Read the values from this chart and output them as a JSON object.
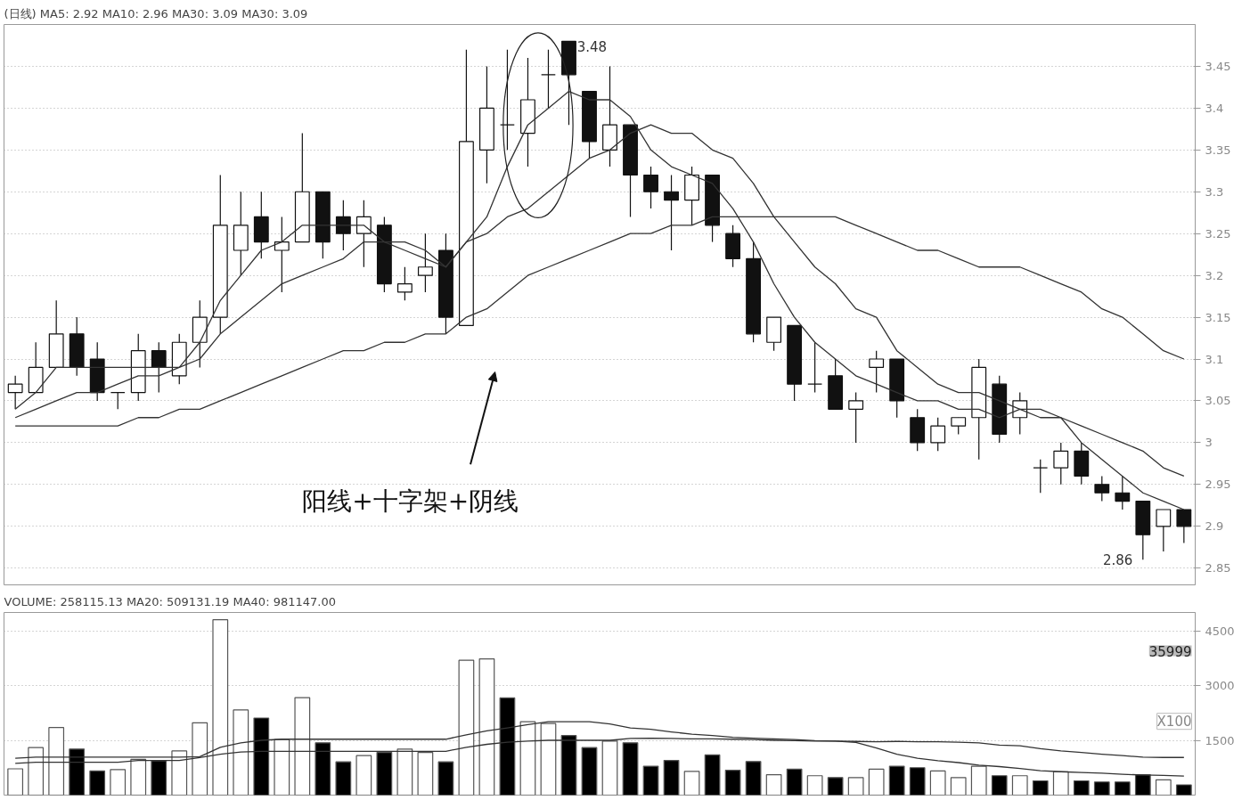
{
  "chart_data": [
    {
      "type": "candlestick",
      "title": "(日线) MA5: 2.92  MA10: 2.96  MA30: 3.09  MA30: 3.09",
      "categories": [
        null,
        null,
        null,
        null,
        null,
        null,
        null,
        null,
        null,
        null,
        null,
        null,
        null,
        null,
        null,
        null,
        null,
        null,
        null,
        null,
        null,
        null,
        null,
        null,
        null,
        null,
        null,
        null,
        null,
        null,
        null,
        null,
        null,
        null,
        null,
        null,
        null,
        null,
        null,
        null,
        null,
        null,
        null,
        null,
        null,
        null,
        null,
        null,
        null,
        null,
        null,
        null,
        null,
        null,
        null,
        null,
        null,
        null
      ],
      "ohlc": [
        [
          3.06,
          3.08,
          3.04,
          3.07
        ],
        [
          3.06,
          3.12,
          3.06,
          3.09
        ],
        [
          3.09,
          3.17,
          3.09,
          3.13
        ],
        [
          3.13,
          3.15,
          3.08,
          3.09
        ],
        [
          3.1,
          3.12,
          3.05,
          3.06
        ],
        [
          3.06,
          3.06,
          3.04,
          3.06
        ],
        [
          3.06,
          3.13,
          3.05,
          3.11
        ],
        [
          3.11,
          3.12,
          3.06,
          3.09
        ],
        [
          3.08,
          3.13,
          3.07,
          3.12
        ],
        [
          3.12,
          3.17,
          3.09,
          3.15
        ],
        [
          3.15,
          3.32,
          3.13,
          3.26
        ],
        [
          3.23,
          3.3,
          3.2,
          3.26
        ],
        [
          3.27,
          3.3,
          3.22,
          3.24
        ],
        [
          3.23,
          3.27,
          3.18,
          3.24
        ],
        [
          3.24,
          3.37,
          3.24,
          3.3
        ],
        [
          3.3,
          3.3,
          3.22,
          3.24
        ],
        [
          3.27,
          3.29,
          3.23,
          3.25
        ],
        [
          3.25,
          3.29,
          3.21,
          3.27
        ],
        [
          3.26,
          3.27,
          3.18,
          3.19
        ],
        [
          3.18,
          3.21,
          3.17,
          3.19
        ],
        [
          3.2,
          3.25,
          3.18,
          3.21
        ],
        [
          3.23,
          3.25,
          3.13,
          3.15
        ],
        [
          3.14,
          3.47,
          3.14,
          3.36
        ],
        [
          3.35,
          3.45,
          3.31,
          3.4
        ],
        [
          3.38,
          3.47,
          3.35,
          3.38
        ],
        [
          3.37,
          3.46,
          3.33,
          3.41
        ],
        [
          3.44,
          3.47,
          3.4,
          3.44
        ],
        [
          3.48,
          3.48,
          3.38,
          3.44
        ],
        [
          3.42,
          3.42,
          3.34,
          3.36
        ],
        [
          3.35,
          3.45,
          3.33,
          3.38
        ],
        [
          3.38,
          3.38,
          3.27,
          3.32
        ],
        [
          3.32,
          3.33,
          3.28,
          3.3
        ],
        [
          3.3,
          3.32,
          3.23,
          3.29
        ],
        [
          3.29,
          3.33,
          3.26,
          3.32
        ],
        [
          3.32,
          3.32,
          3.24,
          3.26
        ],
        [
          3.25,
          3.26,
          3.21,
          3.22
        ],
        [
          3.22,
          3.24,
          3.12,
          3.13
        ],
        [
          3.12,
          3.15,
          3.11,
          3.15
        ],
        [
          3.14,
          3.14,
          3.05,
          3.07
        ],
        [
          3.07,
          3.12,
          3.06,
          3.07
        ],
        [
          3.08,
          3.1,
          3.04,
          3.04
        ],
        [
          3.04,
          3.06,
          3.0,
          3.05
        ],
        [
          3.09,
          3.11,
          3.06,
          3.1
        ],
        [
          3.1,
          3.1,
          3.03,
          3.05
        ],
        [
          3.03,
          3.04,
          2.99,
          3.0
        ],
        [
          3.0,
          3.03,
          2.99,
          3.02
        ],
        [
          3.02,
          3.03,
          3.01,
          3.03
        ],
        [
          3.03,
          3.1,
          2.98,
          3.09
        ],
        [
          3.07,
          3.08,
          3.0,
          3.01
        ],
        [
          3.03,
          3.06,
          3.01,
          3.05
        ],
        [
          2.97,
          2.98,
          2.94,
          2.97
        ],
        [
          2.97,
          3.0,
          2.95,
          2.99
        ],
        [
          2.99,
          3.0,
          2.95,
          2.96
        ],
        [
          2.95,
          2.96,
          2.93,
          2.94
        ],
        [
          2.94,
          2.96,
          2.92,
          2.93
        ],
        [
          2.93,
          2.93,
          2.86,
          2.89
        ],
        [
          2.9,
          2.92,
          2.87,
          2.92
        ],
        [
          2.92,
          2.92,
          2.88,
          2.9
        ]
      ],
      "series": [
        {
          "type": "line",
          "color": "#333333",
          "values": [
            3.04,
            3.06,
            3.09,
            3.09,
            3.09,
            3.09,
            3.09,
            3.09,
            3.09,
            3.12,
            3.17,
            3.2,
            3.23,
            3.24,
            3.26,
            3.26,
            3.26,
            3.26,
            3.24,
            3.23,
            3.22,
            3.21,
            3.24,
            3.27,
            3.33,
            3.38,
            3.4,
            3.42,
            3.41,
            3.41,
            3.39,
            3.35,
            3.33,
            3.32,
            3.31,
            3.28,
            3.24,
            3.19,
            3.15,
            3.12,
            3.1,
            3.08,
            3.07,
            3.06,
            3.05,
            3.05,
            3.04,
            3.04,
            3.03,
            3.04,
            3.03,
            3.03,
            3.0,
            2.98,
            2.96,
            2.94,
            2.93,
            2.92
          ]
        },
        {
          "type": "line",
          "color": "#333333",
          "values": [
            3.03,
            3.04,
            3.05,
            3.06,
            3.06,
            3.07,
            3.08,
            3.08,
            3.09,
            3.1,
            3.13,
            3.15,
            3.17,
            3.19,
            3.2,
            3.21,
            3.22,
            3.24,
            3.24,
            3.24,
            3.23,
            3.21,
            3.24,
            3.25,
            3.27,
            3.28,
            3.3,
            3.32,
            3.34,
            3.35,
            3.37,
            3.38,
            3.37,
            3.37,
            3.35,
            3.34,
            3.31,
            3.27,
            3.24,
            3.21,
            3.19,
            3.16,
            3.15,
            3.11,
            3.09,
            3.07,
            3.06,
            3.06,
            3.05,
            3.04,
            3.04,
            3.03,
            3.02,
            3.01,
            3.0,
            2.99,
            2.97,
            2.96
          ]
        },
        {
          "type": "line",
          "color": "#333333",
          "values": [
            3.02,
            3.02,
            3.02,
            3.02,
            3.02,
            3.02,
            3.03,
            3.03,
            3.04,
            3.04,
            3.05,
            3.06,
            3.07,
            3.08,
            3.09,
            3.1,
            3.11,
            3.11,
            3.12,
            3.12,
            3.13,
            3.13,
            3.15,
            3.16,
            3.18,
            3.2,
            3.21,
            3.22,
            3.23,
            3.24,
            3.25,
            3.25,
            3.26,
            3.26,
            3.27,
            3.27,
            3.27,
            3.27,
            3.27,
            3.27,
            3.27,
            3.26,
            3.25,
            3.24,
            3.23,
            3.23,
            3.22,
            3.21,
            3.21,
            3.21,
            3.2,
            3.19,
            3.18,
            3.16,
            3.15,
            3.13,
            3.11,
            3.1
          ]
        }
      ],
      "ylim": [
        2.83,
        3.5
      ],
      "yticks": [
        2.85,
        2.9,
        2.95,
        3.0,
        3.05,
        3.1,
        3.15,
        3.2,
        3.25,
        3.3,
        3.35,
        3.4,
        3.45
      ],
      "grid": "y",
      "tick_labels": "y",
      "annotations": [
        "3.48",
        "2.86",
        "阳线+十字架+阴线"
      ]
    },
    {
      "type": "bar",
      "title": "VOLUME: 258115.13 MA20: 509131.19 MA40: 981147.00",
      "categories": [
        null,
        null,
        null,
        null,
        null,
        null,
        null,
        null,
        null,
        null,
        null,
        null,
        null,
        null,
        null,
        null,
        null,
        null,
        null,
        null,
        null,
        null,
        null,
        null,
        null,
        null,
        null,
        null,
        null,
        null,
        null,
        null,
        null,
        null,
        null,
        null,
        null,
        null,
        null,
        null,
        null,
        null,
        null,
        null,
        null,
        null,
        null,
        null,
        null,
        null,
        null,
        null,
        null,
        null,
        null,
        null,
        null,
        null
      ],
      "series": [
        {
          "type": "bar",
          "values": [
            720,
            1300,
            1850,
            1260,
            660,
            700,
            980,
            940,
            1210,
            1980,
            4800,
            2330,
            2110,
            1520,
            2670,
            1430,
            910,
            1080,
            1170,
            1260,
            1170,
            910,
            3690,
            3730,
            2660,
            2010,
            1960,
            1630,
            1300,
            1480,
            1430,
            790,
            950,
            650,
            1100,
            680,
            920,
            560,
            710,
            530,
            480,
            480,
            710,
            790,
            750,
            660,
            480,
            790,
            530,
            530,
            390,
            640,
            390,
            360,
            360,
            560,
            420,
            280
          ],
          "colors": [
            "#ffffff",
            "#ffffff",
            "#ffffff",
            "#000000",
            "#000000",
            "#ffffff",
            "#ffffff",
            "#000000",
            "#ffffff",
            "#ffffff",
            "#ffffff",
            "#ffffff",
            "#000000",
            "#ffffff",
            "#ffffff",
            "#000000",
            "#000000",
            "#ffffff",
            "#000000",
            "#ffffff",
            "#ffffff",
            "#000000",
            "#ffffff",
            "#ffffff",
            "#000000",
            "#ffffff",
            "#ffffff",
            "#000000",
            "#000000",
            "#ffffff",
            "#000000",
            "#000000",
            "#000000",
            "#ffffff",
            "#000000",
            "#000000",
            "#000000",
            "#ffffff",
            "#000000",
            "#ffffff",
            "#000000",
            "#ffffff",
            "#ffffff",
            "#000000",
            "#000000",
            "#ffffff",
            "#ffffff",
            "#ffffff",
            "#000000",
            "#ffffff",
            "#000000",
            "#ffffff",
            "#000000",
            "#000000",
            "#000000",
            "#000000",
            "#ffffff",
            "#000000"
          ]
        },
        {
          "type": "line",
          "color": "#333333",
          "values": [
            1010,
            1040,
            1040,
            1040,
            1040,
            1040,
            1040,
            1040,
            1040,
            1050,
            1310,
            1430,
            1500,
            1530,
            1530,
            1530,
            1530,
            1530,
            1530,
            1530,
            1530,
            1530,
            1650,
            1760,
            1840,
            1930,
            2010,
            2010,
            2010,
            1950,
            1840,
            1800,
            1730,
            1670,
            1630,
            1580,
            1560,
            1540,
            1520,
            1490,
            1480,
            1470,
            1460,
            1470,
            1460,
            1460,
            1450,
            1430,
            1370,
            1350,
            1270,
            1210,
            1170,
            1120,
            1080,
            1040,
            1030,
            1030
          ]
        },
        {
          "type": "line",
          "color": "#333333",
          "values": [
            870,
            900,
            900,
            900,
            900,
            900,
            950,
            950,
            950,
            1030,
            1120,
            1180,
            1200,
            1200,
            1200,
            1200,
            1200,
            1200,
            1200,
            1200,
            1200,
            1200,
            1310,
            1390,
            1450,
            1480,
            1500,
            1500,
            1500,
            1500,
            1550,
            1560,
            1550,
            1540,
            1540,
            1530,
            1520,
            1500,
            1490,
            1480,
            1480,
            1440,
            1290,
            1120,
            1010,
            940,
            890,
            820,
            780,
            730,
            670,
            640,
            620,
            600,
            570,
            550,
            540,
            520
          ]
        }
      ],
      "ylim": [
        0,
        5000
      ],
      "yticks": [
        1500,
        3000,
        4500
      ],
      "grid": "y",
      "tick_labels": "y",
      "annotations": [
        "35999",
        "X100"
      ]
    }
  ]
}
